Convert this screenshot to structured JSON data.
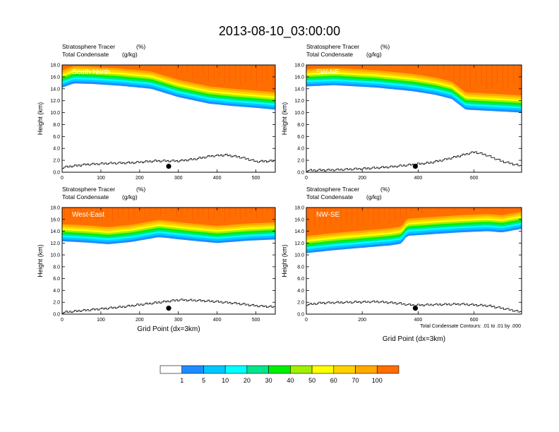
{
  "figure_title": "2013-08-10_03:00:00",
  "colors": {
    "levels": [
      "#ffffff",
      "#1e8cff",
      "#00c8ff",
      "#00ffff",
      "#00e68c",
      "#00f000",
      "#a0f000",
      "#ffff00",
      "#ffd200",
      "#ffaa00",
      "#ff6e00",
      "#ff0000"
    ],
    "contour": "#000000",
    "marker": "#000000"
  },
  "colorbar": {
    "labels": [
      "1",
      "5",
      "10",
      "20",
      "30",
      "40",
      "50",
      "60",
      "70",
      "100"
    ]
  },
  "footnote": "Total Condensate Contours: .01 to .01 by .000",
  "chart_data": [
    {
      "type": "heatmap",
      "name": "South-North",
      "title_left_1": "Stratosphere Tracer",
      "title_right_1": "(%)",
      "title_left_2": "Total Condensate",
      "title_right_2": "(g/kg)",
      "ylabel": "Height (km)",
      "xlabel": "",
      "xlim": [
        0,
        550
      ],
      "ylim": [
        0,
        18
      ],
      "xticks": [
        0,
        100,
        200,
        300,
        400,
        500
      ],
      "yticks": [
        "0.0",
        "2.0",
        "4.0",
        "6.0",
        "8.0",
        "10.0",
        "12.0",
        "14.0",
        "16.0",
        "18.0"
      ],
      "tracer_base_km": [
        [
          0,
          14.2
        ],
        [
          30,
          14.9
        ],
        [
          80,
          14.8
        ],
        [
          150,
          14.5
        ],
        [
          230,
          14.0
        ],
        [
          300,
          12.6
        ],
        [
          380,
          11.5
        ],
        [
          440,
          11.1
        ],
        [
          500,
          10.8
        ],
        [
          550,
          10.5
        ]
      ],
      "terrain_km": [
        [
          0,
          0.8
        ],
        [
          20,
          1.0
        ],
        [
          60,
          1.3
        ],
        [
          120,
          1.5
        ],
        [
          180,
          1.6
        ],
        [
          240,
          1.9
        ],
        [
          300,
          1.9
        ],
        [
          340,
          2.2
        ],
        [
          380,
          2.7
        ],
        [
          420,
          2.9
        ],
        [
          460,
          2.5
        ],
        [
          500,
          1.8
        ],
        [
          550,
          1.9
        ]
      ],
      "marker": [
        275,
        1.0
      ]
    },
    {
      "type": "heatmap",
      "name": "SW-NE",
      "title_left_1": "Stratosphere Tracer",
      "title_right_1": "(%)",
      "title_left_2": "Total Condensate",
      "title_right_2": "(g/kg)",
      "ylabel": "Height (km)",
      "xlabel": "",
      "xlim": [
        0,
        770
      ],
      "ylim": [
        0,
        18
      ],
      "xticks": [
        0,
        200,
        400,
        600
      ],
      "yticks": [
        "0.0",
        "2.0",
        "4.0",
        "6.0",
        "8.0",
        "10.0",
        "12.0",
        "14.0",
        "16.0",
        "18.0"
      ],
      "tracer_base_km": [
        [
          0,
          14.4
        ],
        [
          100,
          14.6
        ],
        [
          250,
          14.2
        ],
        [
          380,
          13.6
        ],
        [
          460,
          13.0
        ],
        [
          520,
          12.3
        ],
        [
          570,
          10.5
        ],
        [
          650,
          10.3
        ],
        [
          770,
          10.0
        ]
      ],
      "terrain_km": [
        [
          0,
          0.3
        ],
        [
          100,
          0.4
        ],
        [
          200,
          0.6
        ],
        [
          300,
          0.9
        ],
        [
          380,
          1.3
        ],
        [
          440,
          1.6
        ],
        [
          500,
          2.2
        ],
        [
          550,
          2.8
        ],
        [
          600,
          3.4
        ],
        [
          640,
          2.9
        ],
        [
          700,
          1.8
        ],
        [
          770,
          1.0
        ]
      ],
      "marker": [
        390,
        1.0
      ]
    },
    {
      "type": "heatmap",
      "name": "West-East",
      "title_left_1": "Stratosphere Tracer",
      "title_right_1": "(%)",
      "title_left_2": "Total Condensate",
      "title_right_2": "(g/kg)",
      "ylabel": "Height (km)",
      "xlabel": "Grid Point (dx=3km)",
      "xlim": [
        0,
        550
      ],
      "ylim": [
        0,
        18
      ],
      "xticks": [
        0,
        100,
        200,
        300,
        400,
        500
      ],
      "yticks": [
        "0.0",
        "2.0",
        "4.0",
        "6.0",
        "8.0",
        "10.0",
        "12.0",
        "14.0",
        "16.0",
        "18.0"
      ],
      "tracer_base_km": [
        [
          0,
          12.3
        ],
        [
          60,
          12.1
        ],
        [
          120,
          11.8
        ],
        [
          180,
          12.2
        ],
        [
          250,
          13.0
        ],
        [
          320,
          12.5
        ],
        [
          400,
          12.0
        ],
        [
          480,
          12.4
        ],
        [
          550,
          12.6
        ]
      ],
      "terrain_km": [
        [
          0,
          0.3
        ],
        [
          50,
          0.6
        ],
        [
          100,
          0.9
        ],
        [
          150,
          1.2
        ],
        [
          200,
          1.6
        ],
        [
          250,
          2.0
        ],
        [
          300,
          2.4
        ],
        [
          350,
          2.3
        ],
        [
          400,
          2.1
        ],
        [
          450,
          1.8
        ],
        [
          500,
          1.4
        ],
        [
          550,
          1.2
        ]
      ],
      "marker": [
        275,
        1.0
      ]
    },
    {
      "type": "heatmap",
      "name": "NW-SE",
      "title_left_1": "Stratosphere Tracer",
      "title_right_1": "(%)",
      "title_left_2": "Total Condensate",
      "title_right_2": "(g/kg)",
      "ylabel": "Height (km)",
      "xlabel": "Grid Point (dx=3km)",
      "xlim": [
        0,
        770
      ],
      "ylim": [
        0,
        18
      ],
      "xticks": [
        0,
        200,
        400,
        600
      ],
      "yticks": [
        "0.0",
        "2.0",
        "4.0",
        "6.0",
        "8.0",
        "10.0",
        "12.0",
        "14.0",
        "16.0",
        "18.0"
      ],
      "tracer_base_km": [
        [
          0,
          10.3
        ],
        [
          100,
          10.8
        ],
        [
          200,
          11.2
        ],
        [
          300,
          11.6
        ],
        [
          340,
          11.9
        ],
        [
          360,
          13.2
        ],
        [
          450,
          13.5
        ],
        [
          550,
          13.8
        ],
        [
          650,
          14.0
        ],
        [
          700,
          13.8
        ],
        [
          770,
          14.4
        ]
      ],
      "terrain_km": [
        [
          0,
          1.6
        ],
        [
          50,
          1.9
        ],
        [
          150,
          2.0
        ],
        [
          250,
          2.1
        ],
        [
          330,
          1.8
        ],
        [
          380,
          1.5
        ],
        [
          450,
          1.6
        ],
        [
          550,
          1.7
        ],
        [
          650,
          1.4
        ],
        [
          720,
          0.8
        ],
        [
          770,
          0.3
        ]
      ],
      "marker": [
        390,
        1.0
      ]
    }
  ]
}
